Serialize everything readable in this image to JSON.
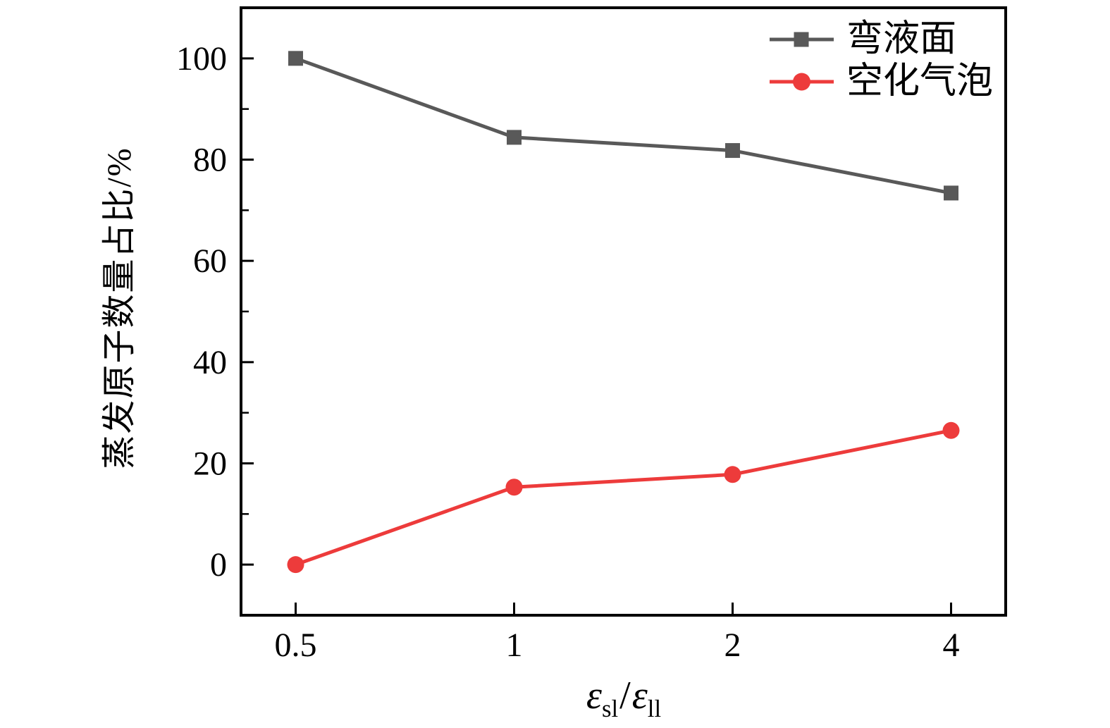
{
  "figure": {
    "background": "#ffffff",
    "axis_color": "#000000",
    "tick_label_color": "#000000"
  },
  "chart_data": {
    "type": "line",
    "title": "",
    "xlabel": "εsl/εll",
    "xlabel_parts": {
      "sym1": "ε",
      "sub1": "sl",
      "divider": "/",
      "sym2": "ε",
      "sub2": "ll"
    },
    "ylabel": "蒸发原子数量占比/%",
    "x": [
      0.5,
      1,
      2,
      4
    ],
    "x_scale": "log2",
    "x_tick_labels": [
      "0.5",
      "1",
      "2",
      "4"
    ],
    "y_ticks": [
      0,
      20,
      40,
      60,
      80,
      100
    ],
    "y_minor_ticks": [
      10,
      30,
      50,
      70,
      90
    ],
    "ylim": [
      -10,
      110
    ],
    "grid": false,
    "legend_position": "top-right-inside",
    "series": [
      {
        "name": "弯液面",
        "marker": "square",
        "color": "#595959",
        "values": [
          100,
          84.4,
          81.8,
          73.4
        ]
      },
      {
        "name": "空化气泡",
        "marker": "circle",
        "color": "#ed3b3b",
        "values": [
          0,
          15.3,
          17.8,
          26.5
        ]
      }
    ]
  }
}
